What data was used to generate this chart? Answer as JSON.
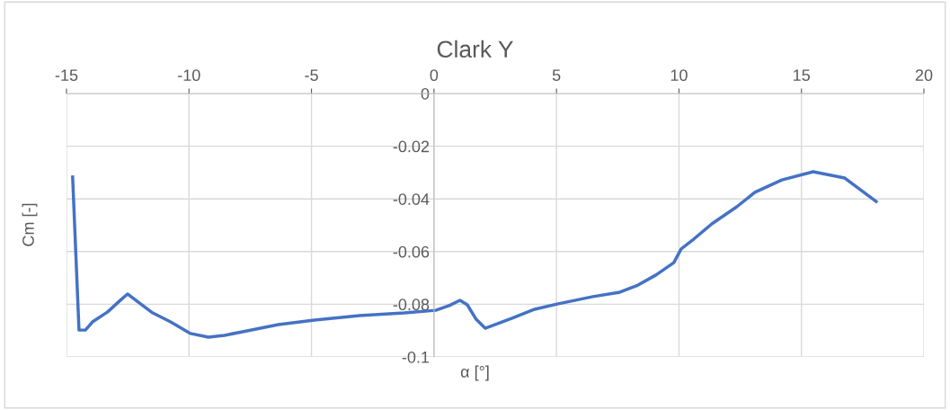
{
  "chart_data": {
    "type": "line",
    "title": "Clark Y",
    "xlabel": "α [°]",
    "ylabel": "Cm [-]",
    "series": [
      {
        "color": "#4472c4",
        "x": [
          -14.75,
          -14.49,
          -14.23,
          -13.94,
          -13.32,
          -12.84,
          -12.51,
          -12.03,
          -11.48,
          -10.75,
          -9.94,
          -9.21,
          -8.55,
          -7.63,
          -6.35,
          -4.88,
          -3.04,
          -1.21,
          0.07,
          0.62,
          1.06,
          1.36,
          1.72,
          2.09,
          3.19,
          4.11,
          5.03,
          6.49,
          7.59,
          8.33,
          9.06,
          9.79,
          10.09,
          10.6,
          11.34,
          12.36,
          13.1,
          14.2,
          15.48,
          16.77,
          18.05
        ],
        "values": [
          -0.0317,
          -0.0898,
          -0.0898,
          -0.0867,
          -0.0829,
          -0.0788,
          -0.0761,
          -0.0795,
          -0.0833,
          -0.0867,
          -0.0911,
          -0.0925,
          -0.0918,
          -0.0901,
          -0.0877,
          -0.086,
          -0.0843,
          -0.0833,
          -0.0823,
          -0.0805,
          -0.0785,
          -0.0802,
          -0.0857,
          -0.0891,
          -0.0853,
          -0.0819,
          -0.0799,
          -0.0771,
          -0.0754,
          -0.0727,
          -0.0689,
          -0.0642,
          -0.059,
          -0.0553,
          -0.0495,
          -0.043,
          -0.0375,
          -0.0328,
          -0.0297,
          -0.0321,
          -0.041
        ]
      }
    ],
    "xlim": [
      -15,
      20
    ],
    "xticks": [
      -15,
      -10,
      -5,
      0,
      5,
      10,
      15,
      20
    ],
    "ylim": [
      -0.1,
      0
    ],
    "yticks": [
      -0.1,
      -0.08,
      -0.06,
      -0.04,
      -0.02,
      0
    ],
    "grid": true,
    "marker": "none",
    "line_style": "solid"
  }
}
